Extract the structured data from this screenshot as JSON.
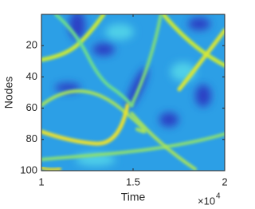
{
  "chart_data": {
    "type": "heatmap",
    "x_label": "Time",
    "y_label": "Nodes",
    "x_exponent": {
      "base": "×10",
      "power": "4"
    },
    "xlim": [
      10000,
      20000
    ],
    "xticks": [
      {
        "value": 10000,
        "label": "1"
      },
      {
        "value": 15000,
        "label": "1.5"
      },
      {
        "value": 20000,
        "label": "2"
      }
    ],
    "ylim": [
      0,
      100
    ],
    "ydir": "reverse",
    "yticks": [
      20,
      40,
      60,
      80,
      100
    ]
  }
}
